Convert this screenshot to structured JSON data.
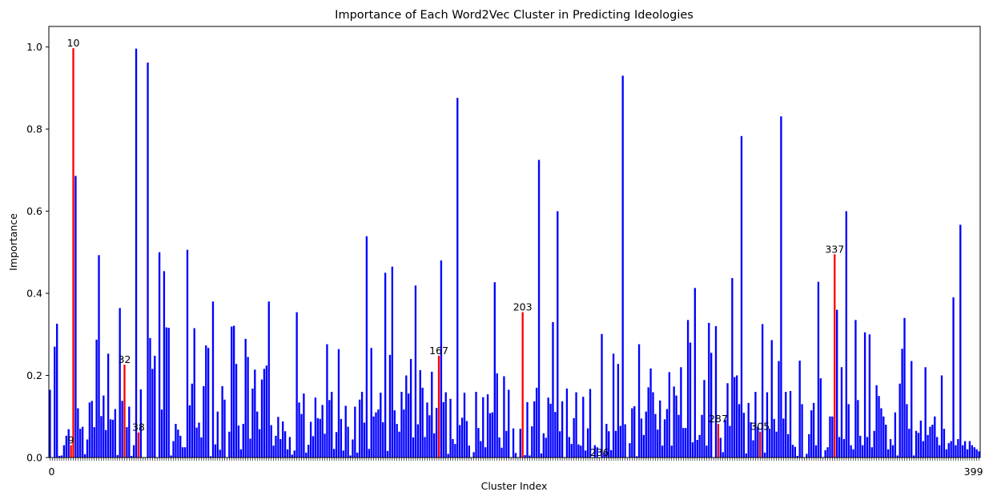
{
  "chart_data": {
    "type": "bar",
    "title": "Importance of Each Word2Vec Cluster in Predicting Ideologies",
    "xlabel": "Cluster Index",
    "ylabel": "Importance",
    "ylim": [
      0,
      1.05
    ],
    "yticks": [
      "0.0",
      "0.2",
      "0.4",
      "0.6",
      "0.8",
      "1.0"
    ],
    "n_clusters": 400,
    "colors": {
      "normal": "#0000ff",
      "highlight": "#ff0000"
    },
    "values": [
      0.165,
      0.0,
      0.27,
      0.326,
      0.004,
      0.005,
      0.03,
      0.053,
      0.069,
      0.03,
      0.997,
      0.686,
      0.12,
      0.07,
      0.075,
      0.008,
      0.044,
      0.134,
      0.138,
      0.074,
      0.287,
      0.493,
      0.101,
      0.151,
      0.067,
      0.253,
      0.093,
      0.092,
      0.118,
      0.006,
      0.364,
      0.138,
      0.226,
      0.074,
      0.124,
      0.004,
      0.03,
      0.996,
      0.061,
      0.166,
      0.0,
      0.0,
      0.962,
      0.291,
      0.216,
      0.248,
      0.0,
      0.5,
      0.117,
      0.454,
      0.317,
      0.316,
      0.005,
      0.04,
      0.082,
      0.068,
      0.053,
      0.025,
      0.025,
      0.506,
      0.127,
      0.18,
      0.315,
      0.073,
      0.085,
      0.049,
      0.174,
      0.273,
      0.267,
      0.003,
      0.38,
      0.032,
      0.112,
      0.019,
      0.174,
      0.141,
      0.0,
      0.063,
      0.319,
      0.321,
      0.228,
      0.078,
      0.02,
      0.082,
      0.289,
      0.245,
      0.046,
      0.168,
      0.214,
      0.112,
      0.069,
      0.19,
      0.216,
      0.224,
      0.38,
      0.079,
      0.029,
      0.053,
      0.099,
      0.045,
      0.088,
      0.064,
      0.02,
      0.05,
      0.007,
      0.017,
      0.354,
      0.134,
      0.106,
      0.156,
      0.012,
      0.031,
      0.087,
      0.052,
      0.146,
      0.096,
      0.094,
      0.128,
      0.058,
      0.276,
      0.14,
      0.16,
      0.021,
      0.062,
      0.264,
      0.094,
      0.017,
      0.126,
      0.075,
      0.005,
      0.044,
      0.124,
      0.012,
      0.141,
      0.16,
      0.085,
      0.539,
      0.021,
      0.267,
      0.1,
      0.11,
      0.117,
      0.158,
      0.086,
      0.45,
      0.016,
      0.25,
      0.465,
      0.115,
      0.082,
      0.063,
      0.16,
      0.117,
      0.2,
      0.156,
      0.24,
      0.049,
      0.419,
      0.081,
      0.213,
      0.17,
      0.05,
      0.134,
      0.103,
      0.209,
      0.059,
      0.121,
      0.248,
      0.48,
      0.135,
      0.159,
      0.009,
      0.143,
      0.045,
      0.033,
      0.876,
      0.079,
      0.097,
      0.158,
      0.089,
      0.029,
      0.0,
      0.013,
      0.16,
      0.072,
      0.04,
      0.147,
      0.025,
      0.154,
      0.108,
      0.11,
      0.427,
      0.205,
      0.049,
      0.024,
      0.198,
      0.065,
      0.165,
      0.0,
      0.071,
      0.011,
      0.0,
      0.07,
      0.354,
      0.006,
      0.135,
      0.005,
      0.076,
      0.137,
      0.17,
      0.725,
      0.01,
      0.059,
      0.048,
      0.146,
      0.131,
      0.33,
      0.111,
      0.6,
      0.064,
      0.137,
      0.0,
      0.168,
      0.05,
      0.033,
      0.096,
      0.159,
      0.032,
      0.029,
      0.148,
      0.017,
      0.071,
      0.167,
      0.001,
      0.03,
      0.025,
      0.0,
      0.301,
      0.011,
      0.082,
      0.064,
      0.018,
      0.253,
      0.065,
      0.228,
      0.077,
      0.93,
      0.081,
      0.0,
      0.035,
      0.12,
      0.125,
      0.003,
      0.276,
      0.095,
      0.055,
      0.112,
      0.171,
      0.217,
      0.159,
      0.106,
      0.068,
      0.139,
      0.029,
      0.093,
      0.118,
      0.208,
      0.029,
      0.173,
      0.151,
      0.104,
      0.22,
      0.072,
      0.072,
      0.335,
      0.28,
      0.037,
      0.413,
      0.043,
      0.055,
      0.104,
      0.189,
      0.029,
      0.328,
      0.255,
      0.0,
      0.32,
      0.082,
      0.048,
      0.013,
      0.092,
      0.181,
      0.077,
      0.437,
      0.196,
      0.2,
      0.13,
      0.783,
      0.109,
      0.01,
      0.133,
      0.086,
      0.042,
      0.16,
      0.075,
      0.063,
      0.325,
      0.012,
      0.159,
      0.07,
      0.286,
      0.094,
      0.063,
      0.235,
      0.831,
      0.095,
      0.16,
      0.057,
      0.162,
      0.031,
      0.026,
      0.004,
      0.236,
      0.13,
      0.0,
      0.009,
      0.057,
      0.115,
      0.133,
      0.03,
      0.428,
      0.193,
      0.0,
      0.018,
      0.025,
      0.1,
      0.1,
      0.495,
      0.36,
      0.05,
      0.22,
      0.045,
      0.6,
      0.13,
      0.03,
      0.02,
      0.335,
      0.14,
      0.053,
      0.03,
      0.305,
      0.05,
      0.3,
      0.025,
      0.065,
      0.176,
      0.15,
      0.12,
      0.1,
      0.08,
      0.02,
      0.045,
      0.03,
      0.11,
      0.005,
      0.18,
      0.265,
      0.34,
      0.13,
      0.07,
      0.235,
      0.005,
      0.065,
      0.06,
      0.09,
      0.04,
      0.22,
      0.055,
      0.075,
      0.08,
      0.1,
      0.05,
      0.03,
      0.2,
      0.07,
      0.02,
      0.035,
      0.04,
      0.39,
      0.03,
      0.045,
      0.567,
      0.03,
      0.04,
      0.02,
      0.04,
      0.03,
      0.025,
      0.02,
      0.015,
      0.01,
      0.02,
      0.0,
      0.0,
      0.015,
      0.018,
      0.0,
      0.02
    ],
    "highlight_indices": [
      9,
      10,
      32,
      38,
      167,
      203,
      236,
      287,
      305,
      337
    ],
    "annotations": [
      "9",
      "10",
      "32",
      "38",
      "167",
      "203",
      "236",
      "287",
      "305",
      "337"
    ],
    "x_tick_labels_visible": [
      "0",
      "399"
    ]
  }
}
